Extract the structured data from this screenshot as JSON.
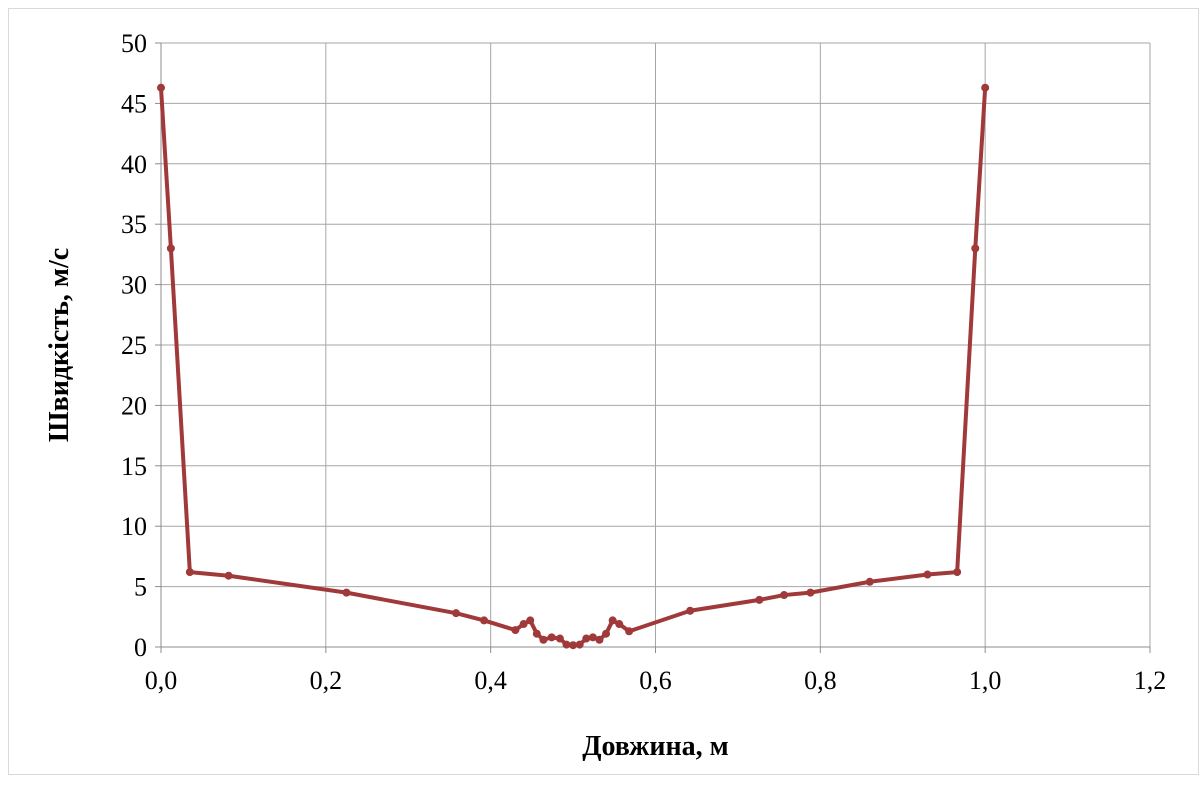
{
  "chart_data": {
    "type": "line",
    "title": "",
    "xlabel": "Довжина, м",
    "ylabel": "Швидкість, м/с",
    "xlim": [
      0,
      1.2
    ],
    "ylim": [
      0,
      50
    ],
    "x_ticks": [
      0,
      0.2,
      0.4,
      0.6,
      0.8,
      1.0,
      1.2
    ],
    "x_tick_labels": [
      "0,0",
      "0,2",
      "0,4",
      "0,6",
      "0,8",
      "1,0",
      "1,2"
    ],
    "y_ticks": [
      0,
      5,
      10,
      15,
      20,
      25,
      30,
      35,
      40,
      45,
      50
    ],
    "y_tick_labels": [
      "0",
      "5",
      "10",
      "15",
      "20",
      "25",
      "30",
      "35",
      "40",
      "45",
      "50"
    ],
    "grid": true,
    "legend": "none",
    "series_color": "#A0393A",
    "series": [
      {
        "x": [
          0.0,
          0.012,
          0.035,
          0.082,
          0.225,
          0.358,
          0.392,
          0.43,
          0.44,
          0.448,
          0.456,
          0.464,
          0.474,
          0.484,
          0.492,
          0.5,
          0.508,
          0.516,
          0.524,
          0.532,
          0.54,
          0.548,
          0.556,
          0.568,
          0.642,
          0.726,
          0.756,
          0.788,
          0.86,
          0.93,
          0.966,
          0.988,
          1.0
        ],
        "y": [
          46.3,
          33.0,
          6.2,
          5.9,
          4.5,
          2.8,
          2.2,
          1.4,
          1.9,
          2.2,
          1.1,
          0.6,
          0.8,
          0.7,
          0.2,
          0.15,
          0.2,
          0.7,
          0.8,
          0.6,
          1.1,
          2.2,
          1.9,
          1.3,
          3.0,
          3.9,
          4.3,
          4.5,
          5.4,
          6.0,
          6.2,
          33.0,
          46.3
        ]
      }
    ]
  }
}
